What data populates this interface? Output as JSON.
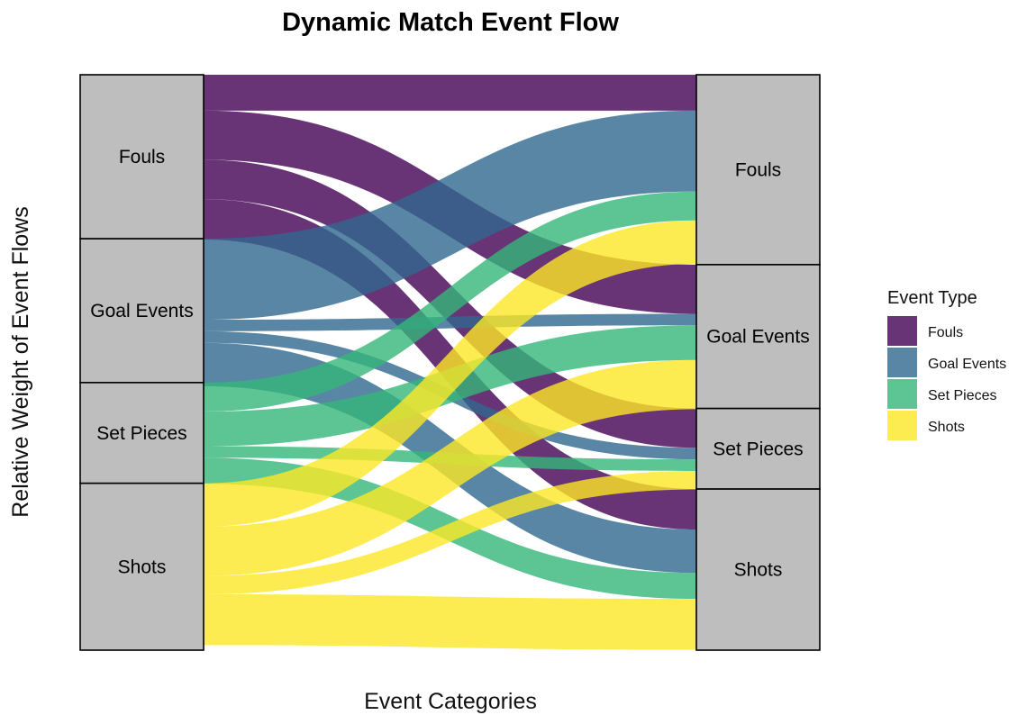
{
  "chart_data": {
    "type": "alluvial",
    "title": "Dynamic Match Event Flow",
    "xlabel": "Event Categories",
    "ylabel": "Relative Weight of Event Flows",
    "legend": {
      "title": "Event Type",
      "position": "right",
      "items": [
        {
          "name": "Fouls",
          "color": "#440154"
        },
        {
          "name": "Goal Events",
          "color": "#31688E"
        },
        {
          "name": "Set Pieces",
          "color": "#35B779"
        },
        {
          "name": "Shots",
          "color": "#FDE725"
        }
      ]
    },
    "left_strata": [
      {
        "label": "Fouls",
        "weight": 0.285
      },
      {
        "label": "Goal Events",
        "weight": 0.25
      },
      {
        "label": "Set Pieces",
        "weight": 0.175
      },
      {
        "label": "Shots",
        "weight": 0.29
      }
    ],
    "right_strata": [
      {
        "label": "Fouls",
        "weight": 0.33
      },
      {
        "label": "Goal Events",
        "weight": 0.25
      },
      {
        "label": "Set Pieces",
        "weight": 0.14
      },
      {
        "label": "Shots",
        "weight": 0.28
      }
    ],
    "flows": [
      {
        "from": "Fouls",
        "to": "Fouls",
        "type": "Fouls",
        "weight": 0.062
      },
      {
        "from": "Fouls",
        "to": "Goal Events",
        "type": "Fouls",
        "weight": 0.085
      },
      {
        "from": "Fouls",
        "to": "Set Pieces",
        "type": "Fouls",
        "weight": 0.068
      },
      {
        "from": "Fouls",
        "to": "Shots",
        "type": "Fouls",
        "weight": 0.07
      },
      {
        "from": "Goal Events",
        "to": "Fouls",
        "type": "Goal Events",
        "weight": 0.14
      },
      {
        "from": "Goal Events",
        "to": "Goal Events",
        "type": "Goal Events",
        "weight": 0.02
      },
      {
        "from": "Goal Events",
        "to": "Set Pieces",
        "type": "Goal Events",
        "weight": 0.02
      },
      {
        "from": "Goal Events",
        "to": "Shots",
        "type": "Goal Events",
        "weight": 0.075
      },
      {
        "from": "Set Pieces",
        "to": "Fouls",
        "type": "Set Pieces",
        "weight": 0.05
      },
      {
        "from": "Set Pieces",
        "to": "Goal Events",
        "type": "Set Pieces",
        "weight": 0.06
      },
      {
        "from": "Set Pieces",
        "to": "Set Pieces",
        "type": "Set Pieces",
        "weight": 0.02
      },
      {
        "from": "Set Pieces",
        "to": "Shots",
        "type": "Set Pieces",
        "weight": 0.045
      },
      {
        "from": "Shots",
        "to": "Fouls",
        "type": "Shots",
        "weight": 0.075
      },
      {
        "from": "Shots",
        "to": "Goal Events",
        "type": "Shots",
        "weight": 0.085
      },
      {
        "from": "Shots",
        "to": "Set Pieces",
        "type": "Shots",
        "weight": 0.032
      },
      {
        "from": "Shots",
        "to": "Shots",
        "type": "Shots",
        "weight": 0.088
      }
    ]
  }
}
